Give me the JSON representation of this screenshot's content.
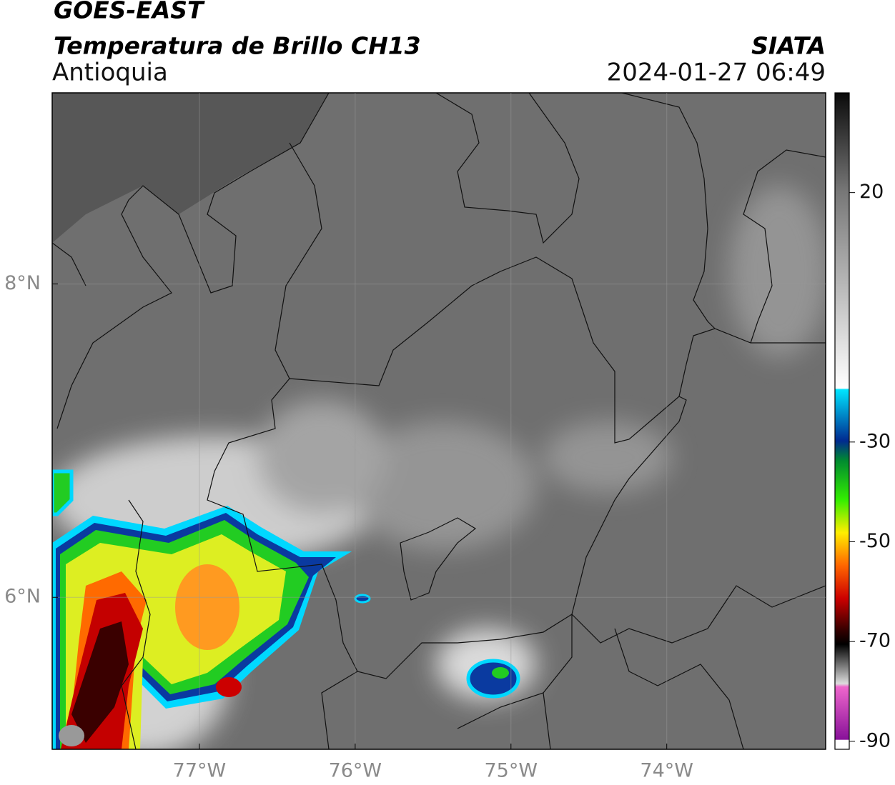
{
  "header": {
    "title": "GOES-EAST",
    "subtitle": "Temperatura de Brillo CH13",
    "region": "Antioquia",
    "source": "SIATA",
    "datetime": "2024-01-27 06:49"
  },
  "map": {
    "lonlim": [
      -77.945,
      -72.98
    ],
    "latlim": [
      5.03,
      9.22
    ],
    "lonticks": [
      {
        "value": -77,
        "label": "77°W"
      },
      {
        "value": -76,
        "label": "76°W"
      },
      {
        "value": -75,
        "label": "75°W"
      },
      {
        "value": -74,
        "label": "74°W"
      }
    ],
    "latticks": [
      {
        "value": 8,
        "label": "8°N"
      },
      {
        "value": 6,
        "label": "6°N"
      }
    ],
    "grid": true
  },
  "colorbar": {
    "lim": [
      -91.6,
      40
    ],
    "ticks": [
      20,
      -30,
      -50,
      -70,
      -90
    ]
  }
}
